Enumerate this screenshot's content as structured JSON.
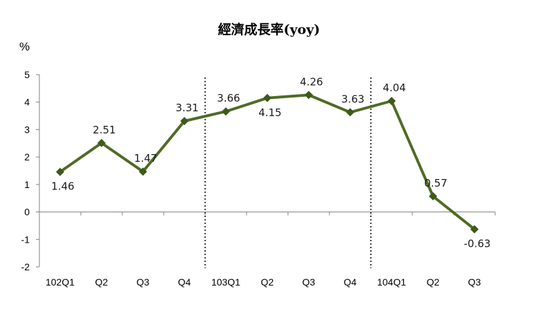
{
  "chart_data": {
    "type": "line",
    "title": "經濟成長率(yoy)",
    "ylabel": "%",
    "categories": [
      "102Q1",
      "Q2",
      "Q3",
      "Q4",
      "103Q1",
      "Q2",
      "Q3",
      "Q4",
      "104Q1",
      "Q2",
      "Q3"
    ],
    "series": [
      {
        "values": [
          1.46,
          2.51,
          1.47,
          3.31,
          3.66,
          4.15,
          4.26,
          3.63,
          4.04,
          0.57,
          -0.63
        ],
        "data_labels": [
          "1.46",
          "2.51",
          "1.47",
          "3.31",
          "3.66",
          "4.15",
          "4.26",
          "3.63",
          "4.04",
          "0.57",
          "-0.63"
        ],
        "label_positions": [
          "below",
          "above",
          "above",
          "above",
          "above",
          "below",
          "above",
          "above",
          "above",
          "above",
          "below"
        ]
      }
    ],
    "ylim": [
      -2,
      5
    ],
    "yticks": [
      "-2",
      "-1",
      "0",
      "1",
      "2",
      "3",
      "4",
      "5"
    ],
    "grid": false,
    "separators_between": [
      3,
      7
    ],
    "colors": {
      "line": "#4f6b26",
      "marker": "#3c5a1a",
      "axis": "#7f7f7f",
      "separator": "#000000"
    }
  }
}
